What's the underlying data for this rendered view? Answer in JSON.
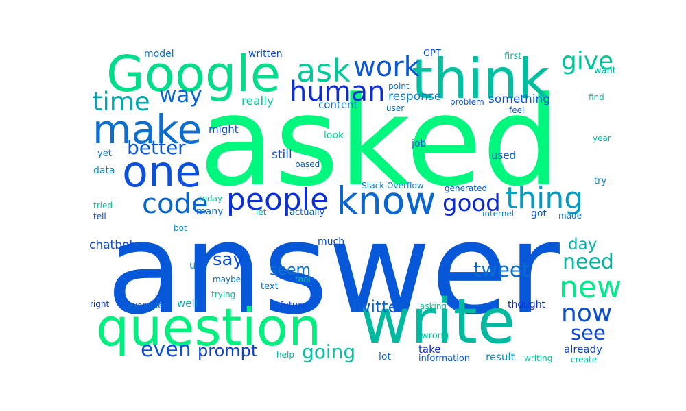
{
  "palette": {
    "spring_green": "#00f57d",
    "teal": "#00b3a1",
    "blue": "#0059d6",
    "deep_blue": "#0a2fd6",
    "cyan_blue": "#0b9ecb"
  },
  "words": [
    {
      "id": "answer",
      "text": "answer",
      "color": "#0758d8"
    },
    {
      "id": "asked",
      "text": "asked",
      "color": "#00f77e"
    },
    {
      "id": "write",
      "text": "write",
      "color": "#00b9a0"
    },
    {
      "id": "question",
      "text": "question",
      "color": "#00f07f"
    },
    {
      "id": "think",
      "text": "think",
      "color": "#00bfa1"
    },
    {
      "id": "google",
      "text": "Google",
      "color": "#00dd8a"
    },
    {
      "id": "make",
      "text": "make",
      "color": "#0b6ed0"
    },
    {
      "id": "one",
      "text": "one",
      "color": "#0b4fdb"
    },
    {
      "id": "know",
      "text": "know",
      "color": "#0766d2"
    },
    {
      "id": "people",
      "text": "people",
      "color": "#0a2ed8"
    },
    {
      "id": "code",
      "text": "code",
      "color": "#0a66cf"
    },
    {
      "id": "thing",
      "text": "thing",
      "color": "#039bc1"
    },
    {
      "id": "ask",
      "text": "ask",
      "color": "#00c99a"
    },
    {
      "id": "work",
      "text": "work",
      "color": "#0a57d6"
    },
    {
      "id": "human",
      "text": "human",
      "color": "#0c2dd6"
    },
    {
      "id": "new",
      "text": "new",
      "color": "#00e98b"
    },
    {
      "id": "now",
      "text": "now",
      "color": "#0a4fd5"
    },
    {
      "id": "time",
      "text": "time",
      "color": "#00a8b0"
    },
    {
      "id": "good",
      "text": "good",
      "color": "#0a28d8"
    },
    {
      "id": "give",
      "text": "give",
      "color": "#00c59b"
    },
    {
      "id": "way",
      "text": "way",
      "color": "#0a67d2"
    },
    {
      "id": "better",
      "text": "better",
      "color": "#0a55d6"
    },
    {
      "id": "need",
      "text": "need",
      "color": "#00b8a2"
    },
    {
      "id": "see",
      "text": "see",
      "color": "#0b4ad7"
    },
    {
      "id": "twitter",
      "text": "Twitter",
      "color": "#0b5ed4"
    },
    {
      "id": "tweet",
      "text": "tweet",
      "color": "#0a6bd1"
    },
    {
      "id": "say",
      "text": "say",
      "color": "#0a45d7"
    },
    {
      "id": "even",
      "text": "even",
      "color": "#0a4fd5"
    },
    {
      "id": "prompt",
      "text": "prompt",
      "color": "#0a3fd7"
    },
    {
      "id": "going",
      "text": "going",
      "color": "#00c29c"
    },
    {
      "id": "seem",
      "text": "seem",
      "color": "#0a72cf"
    },
    {
      "id": "day",
      "text": "day",
      "color": "#00b0a5"
    },
    {
      "id": "response",
      "text": "response",
      "color": "#0a7ccd"
    },
    {
      "id": "something",
      "text": "something",
      "color": "#0a57d6"
    },
    {
      "id": "content",
      "text": "content",
      "color": "#0a6cd1"
    },
    {
      "id": "really",
      "text": "really",
      "color": "#00c69a"
    },
    {
      "id": "might",
      "text": "might",
      "color": "#0a45d7"
    },
    {
      "id": "still",
      "text": "still",
      "color": "#0a4cd6"
    },
    {
      "id": "chatbot",
      "text": "chatbot",
      "color": "#0a4cd6"
    },
    {
      "id": "model",
      "text": "model",
      "color": "#0a73cf"
    },
    {
      "id": "written",
      "text": "written",
      "color": "#0a4dd6"
    },
    {
      "id": "gpt",
      "text": "GPT",
      "color": "#0a55d6"
    },
    {
      "id": "first",
      "text": "first",
      "color": "#00b9a0"
    },
    {
      "id": "want",
      "text": "want",
      "color": "#00b8a2"
    },
    {
      "id": "point",
      "text": "point",
      "color": "#0a7ccd"
    },
    {
      "id": "user",
      "text": "user",
      "color": "#0a72cf"
    },
    {
      "id": "problem",
      "text": "problem",
      "color": "#0a57d6"
    },
    {
      "id": "feel",
      "text": "feel",
      "color": "#0a57d6"
    },
    {
      "id": "find",
      "text": "find",
      "color": "#00c69a"
    },
    {
      "id": "look",
      "text": "look",
      "color": "#00d09a"
    },
    {
      "id": "job",
      "text": "job",
      "color": "#0a57d6"
    },
    {
      "id": "used",
      "text": "used",
      "color": "#0a57d6"
    },
    {
      "id": "year",
      "text": "year",
      "color": "#00b8a2"
    },
    {
      "id": "yet",
      "text": "yet",
      "color": "#0a72cf"
    },
    {
      "id": "data",
      "text": "data",
      "color": "#0a8fcc"
    },
    {
      "id": "based",
      "text": "based",
      "color": "#0a55d6"
    },
    {
      "id": "try",
      "text": "try",
      "color": "#0a80cd"
    },
    {
      "id": "stack_overflow",
      "text": "Stack Overflow",
      "color": "#0a7ccd"
    },
    {
      "id": "generated",
      "text": "generated",
      "color": "#0a57d6"
    },
    {
      "id": "today",
      "text": "today",
      "color": "#00c69a"
    },
    {
      "id": "tried",
      "text": "tried",
      "color": "#00c69a"
    },
    {
      "id": "tell",
      "text": "tell",
      "color": "#0a45d7"
    },
    {
      "id": "many",
      "text": "many",
      "color": "#0a67d2"
    },
    {
      "id": "let",
      "text": "let",
      "color": "#00b0a5"
    },
    {
      "id": "actually",
      "text": "actually",
      "color": "#0a55d6"
    },
    {
      "id": "internet",
      "text": "internet",
      "color": "#0a80cd"
    },
    {
      "id": "got",
      "text": "got",
      "color": "#0a57d6"
    },
    {
      "id": "made",
      "text": "made",
      "color": "#0a72cf"
    },
    {
      "id": "bot",
      "text": "bot",
      "color": "#0a8fcc"
    },
    {
      "id": "much",
      "text": "much",
      "color": "#0a45d7"
    },
    {
      "id": "u",
      "text": "u",
      "color": "#0a8fcc"
    },
    {
      "id": "maybe",
      "text": "maybe",
      "color": "#0a72cf"
    },
    {
      "id": "text",
      "text": "text",
      "color": "#0a72cf"
    },
    {
      "id": "tool",
      "text": "tool",
      "color": "#00c69a"
    },
    {
      "id": "trying",
      "text": "trying",
      "color": "#00c69a"
    },
    {
      "id": "right",
      "text": "right",
      "color": "#0a2ed8"
    },
    {
      "id": "example",
      "text": "example",
      "color": "#0a67d2"
    },
    {
      "id": "well",
      "text": "well",
      "color": "#00b0a5"
    },
    {
      "id": "future",
      "text": "future",
      "color": "#0a45d7"
    },
    {
      "id": "asking",
      "text": "asking",
      "color": "#00c69a"
    },
    {
      "id": "thought",
      "text": "thought",
      "color": "#0a2ed8"
    },
    {
      "id": "wrong",
      "text": "wrong",
      "color": "#00c69a"
    },
    {
      "id": "take",
      "text": "take",
      "color": "#0a2ed8"
    },
    {
      "id": "information",
      "text": "information",
      "color": "#0a57d6"
    },
    {
      "id": "result",
      "text": "result",
      "color": "#0a8fcc"
    },
    {
      "id": "writing",
      "text": "writing",
      "color": "#00c69a"
    },
    {
      "id": "create",
      "text": "create",
      "color": "#00b8a2"
    },
    {
      "id": "already",
      "text": "already",
      "color": "#0a45d7"
    },
    {
      "id": "lot",
      "text": "lot",
      "color": "#0a67d2"
    },
    {
      "id": "help",
      "text": "help",
      "color": "#00b0a5"
    }
  ]
}
